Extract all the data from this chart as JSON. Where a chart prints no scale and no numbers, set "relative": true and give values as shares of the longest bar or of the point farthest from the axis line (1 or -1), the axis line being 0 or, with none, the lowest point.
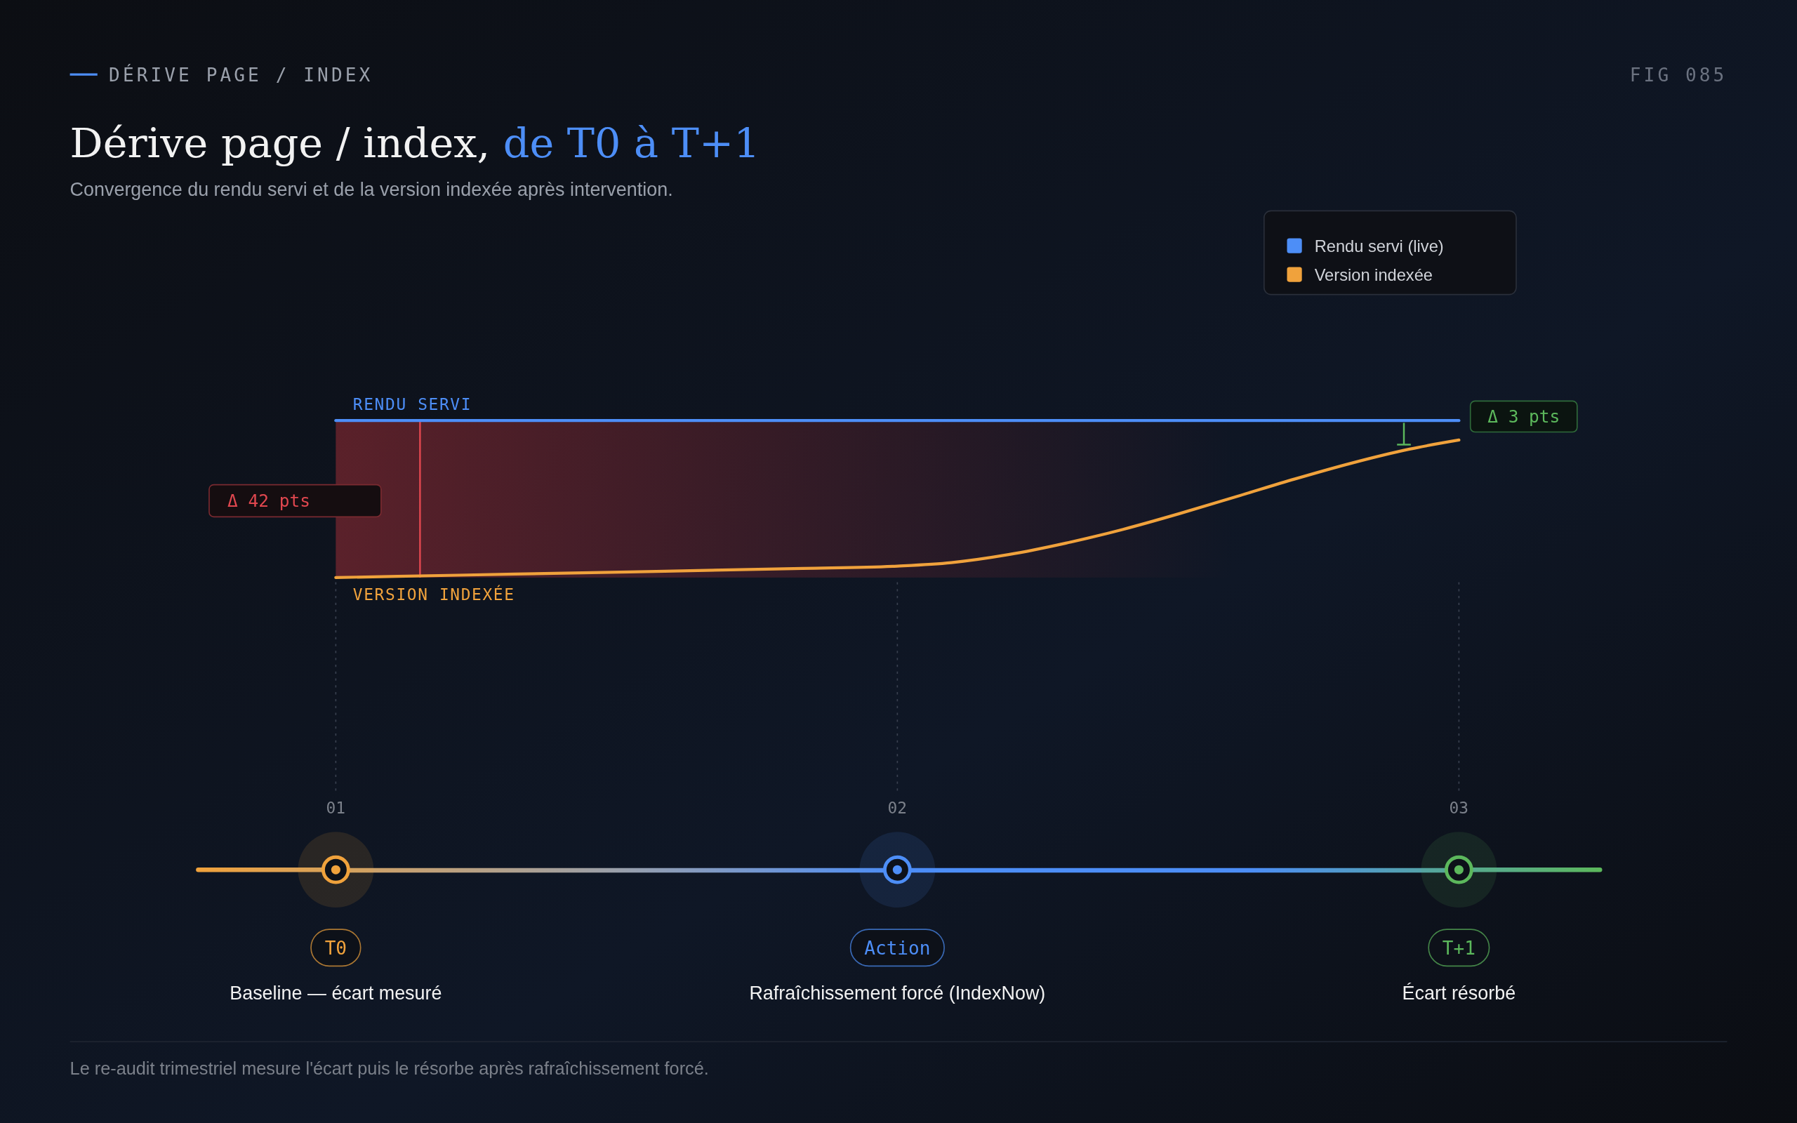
{
  "chart_data": {
    "type": "line",
    "title": "Dérive page / index, de T0 à T+1",
    "subtitle": "Convergence du rendu servi et de la version indexée après intervention.",
    "relative": true,
    "legend": "top right",
    "marker": "none",
    "line_style": "solid",
    "ref_lines": [
      {
        "axis": "x",
        "value": 1.15,
        "label": "Δ 42 pts",
        "color": "#e0474f"
      }
    ],
    "bands": [
      {
        "axis": "y",
        "from": 0,
        "to": 1,
        "color": "#b8323a"
      }
    ],
    "xlim": [
      1,
      3
    ],
    "xticks": [
      {
        "value": 1,
        "label": "01"
      },
      {
        "value": 2,
        "label": "02"
      },
      {
        "value": 3,
        "label": "03"
      }
    ],
    "series": [
      {
        "name": "Rendu servi (live)",
        "color": "#4d8ef7",
        "x": [
          1,
          3
        ],
        "values": [
          1,
          1
        ]
      },
      {
        "name": "Version indexée",
        "color": "#f0a23c",
        "x": [
          1,
          1.218,
          1.524,
          1.831,
          2,
          2.096,
          2.198,
          2.3,
          2.402,
          2.504,
          2.606,
          2.708,
          2.81,
          2.912,
          3
        ],
        "values": [
          0,
          0.015,
          0.036,
          0.058,
          0.073,
          0.095,
          0.146,
          0.219,
          0.307,
          0.409,
          0.518,
          0.628,
          0.73,
          0.818,
          0.876
        ]
      }
    ],
    "annotations": [
      "DÉRIVE PAGE / INDEX",
      "FIG 085",
      {
        "text": "RENDU SERVI",
        "x": 1,
        "y": 1
      },
      {
        "text": "VERSION INDEXÉE",
        "x": 1,
        "y": 0
      },
      "Δ 3 pts",
      "T0",
      "Baseline — écart mesuré",
      "Action",
      "Rafraîchissement forcé (IndexNow)",
      "T+1",
      "Écart résorbé",
      "Le re-audit trimestriel mesure l'écart puis le résorbe après rafraîchissement forcé."
    ]
  }
}
